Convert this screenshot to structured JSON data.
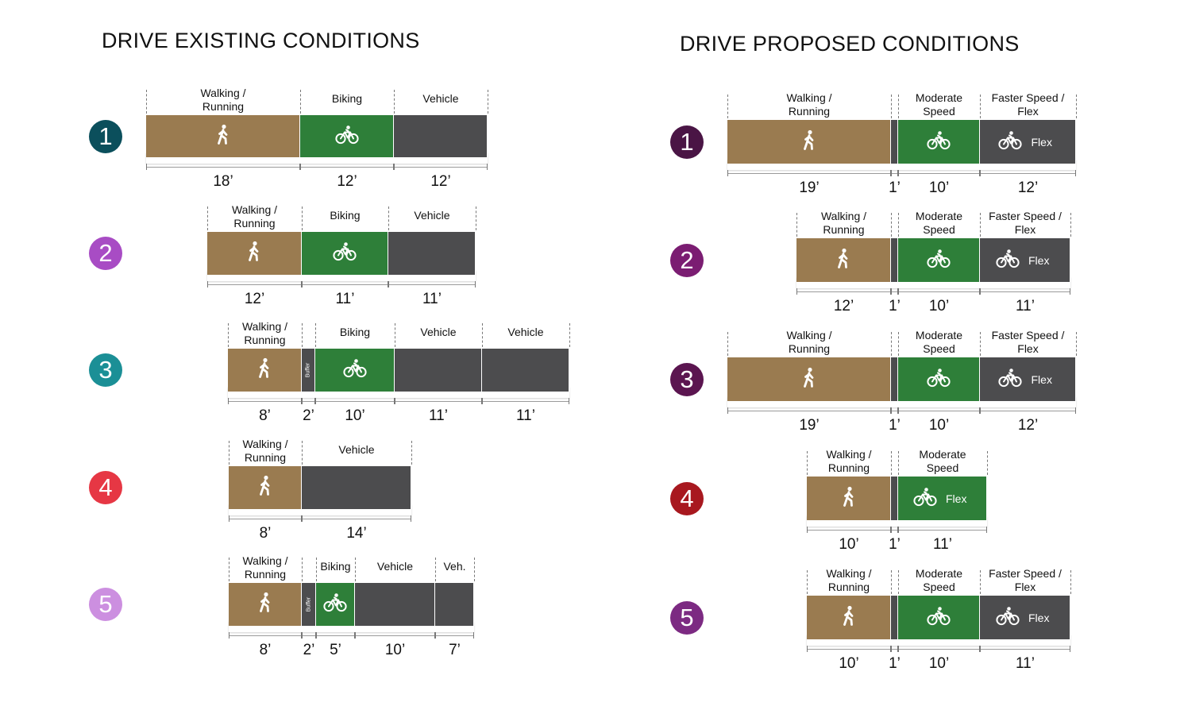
{
  "existing": {
    "title": "DRIVE EXISTING CONDITIONS",
    "rows": [
      {
        "number": "1",
        "badge_color": "#0b4f5c",
        "segments": [
          {
            "type": "walk",
            "label": "Walking /\nRunning",
            "width": "18’"
          },
          {
            "type": "bike",
            "label": "Biking",
            "width": "12’"
          },
          {
            "type": "veh",
            "label": "Vehicle",
            "width": "12’"
          }
        ]
      },
      {
        "number": "2",
        "badge_color": "#a84cc4",
        "segments": [
          {
            "type": "walk",
            "label": "Walking /\nRunning",
            "width": "12’"
          },
          {
            "type": "bike",
            "label": "Biking",
            "width": "11’"
          },
          {
            "type": "veh",
            "label": "Vehicle",
            "width": "11’"
          }
        ]
      },
      {
        "number": "3",
        "badge_color": "#1b8f96",
        "segments": [
          {
            "type": "walk",
            "label": "Walking /\nRunning",
            "width": "8’"
          },
          {
            "type": "buf",
            "label": "",
            "width": "2’",
            "inner": "Buffer"
          },
          {
            "type": "bike",
            "label": "Biking",
            "width": "10’"
          },
          {
            "type": "veh",
            "label": "Vehicle",
            "width": "11’"
          },
          {
            "type": "veh",
            "label": "Vehicle",
            "width": "11’"
          }
        ]
      },
      {
        "number": "4",
        "badge_color": "#e63744",
        "segments": [
          {
            "type": "walk",
            "label": "Walking /\nRunning",
            "width": "8’"
          },
          {
            "type": "veh",
            "label": "Vehicle",
            "width": "14’"
          }
        ]
      },
      {
        "number": "5",
        "badge_color": "#cc8fe0",
        "segments": [
          {
            "type": "walk",
            "label": "Walking /\nRunning",
            "width": "8’"
          },
          {
            "type": "buf",
            "label": "",
            "width": "2’",
            "inner": "Buffer"
          },
          {
            "type": "bike",
            "label": "Biking",
            "width": "5’"
          },
          {
            "type": "veh",
            "label": "Vehicle",
            "width": "10’"
          },
          {
            "type": "veh",
            "label": "Veh.",
            "width": "7’"
          }
        ]
      }
    ]
  },
  "proposed": {
    "title": "DRIVE PROPOSED CONDITIONS",
    "rows": [
      {
        "number": "1",
        "badge_color": "#4a1545",
        "segments": [
          {
            "type": "walk",
            "label": "Walking /\nRunning",
            "width": "19’"
          },
          {
            "type": "buf",
            "label": "",
            "width": "1’"
          },
          {
            "type": "bike",
            "label": "Moderate\nSpeed",
            "width": "10’"
          },
          {
            "type": "veh",
            "label": "Faster Speed /\nFlex",
            "width": "12’",
            "inner": "Flex"
          }
        ]
      },
      {
        "number": "2",
        "badge_color": "#7b1d72",
        "segments": [
          {
            "type": "walk",
            "label": "Walking /\nRunning",
            "width": "12’"
          },
          {
            "type": "buf",
            "label": "",
            "width": "1’"
          },
          {
            "type": "bike",
            "label": "Moderate\nSpeed",
            "width": "10’"
          },
          {
            "type": "veh",
            "label": "Faster Speed /\nFlex",
            "width": "11’",
            "inner": "Flex"
          }
        ]
      },
      {
        "number": "3",
        "badge_color": "#5b1550",
        "segments": [
          {
            "type": "walk",
            "label": "Walking /\nRunning",
            "width": "19’"
          },
          {
            "type": "buf",
            "label": "",
            "width": "1’"
          },
          {
            "type": "bike",
            "label": "Moderate\nSpeed",
            "width": "10’"
          },
          {
            "type": "veh",
            "label": "Faster Speed /\nFlex",
            "width": "12’",
            "inner": "Flex"
          }
        ]
      },
      {
        "number": "4",
        "badge_color": "#a8181f",
        "segments": [
          {
            "type": "walk",
            "label": "Walking /\nRunning",
            "width": "10’"
          },
          {
            "type": "buf",
            "label": "",
            "width": "1’"
          },
          {
            "type": "bike",
            "label": "Moderate\nSpeed",
            "width": "11’",
            "inner": "Flex"
          }
        ]
      },
      {
        "number": "5",
        "badge_color": "#7c2a82",
        "segments": [
          {
            "type": "walk",
            "label": "Walking /\nRunning",
            "width": "10’"
          },
          {
            "type": "buf",
            "label": "",
            "width": "1’"
          },
          {
            "type": "bike",
            "label": "Moderate\nSpeed",
            "width": "10’"
          },
          {
            "type": "veh",
            "label": "Faster Speed /\nFlex",
            "width": "11’",
            "inner": "Flex"
          }
        ]
      }
    ]
  }
}
